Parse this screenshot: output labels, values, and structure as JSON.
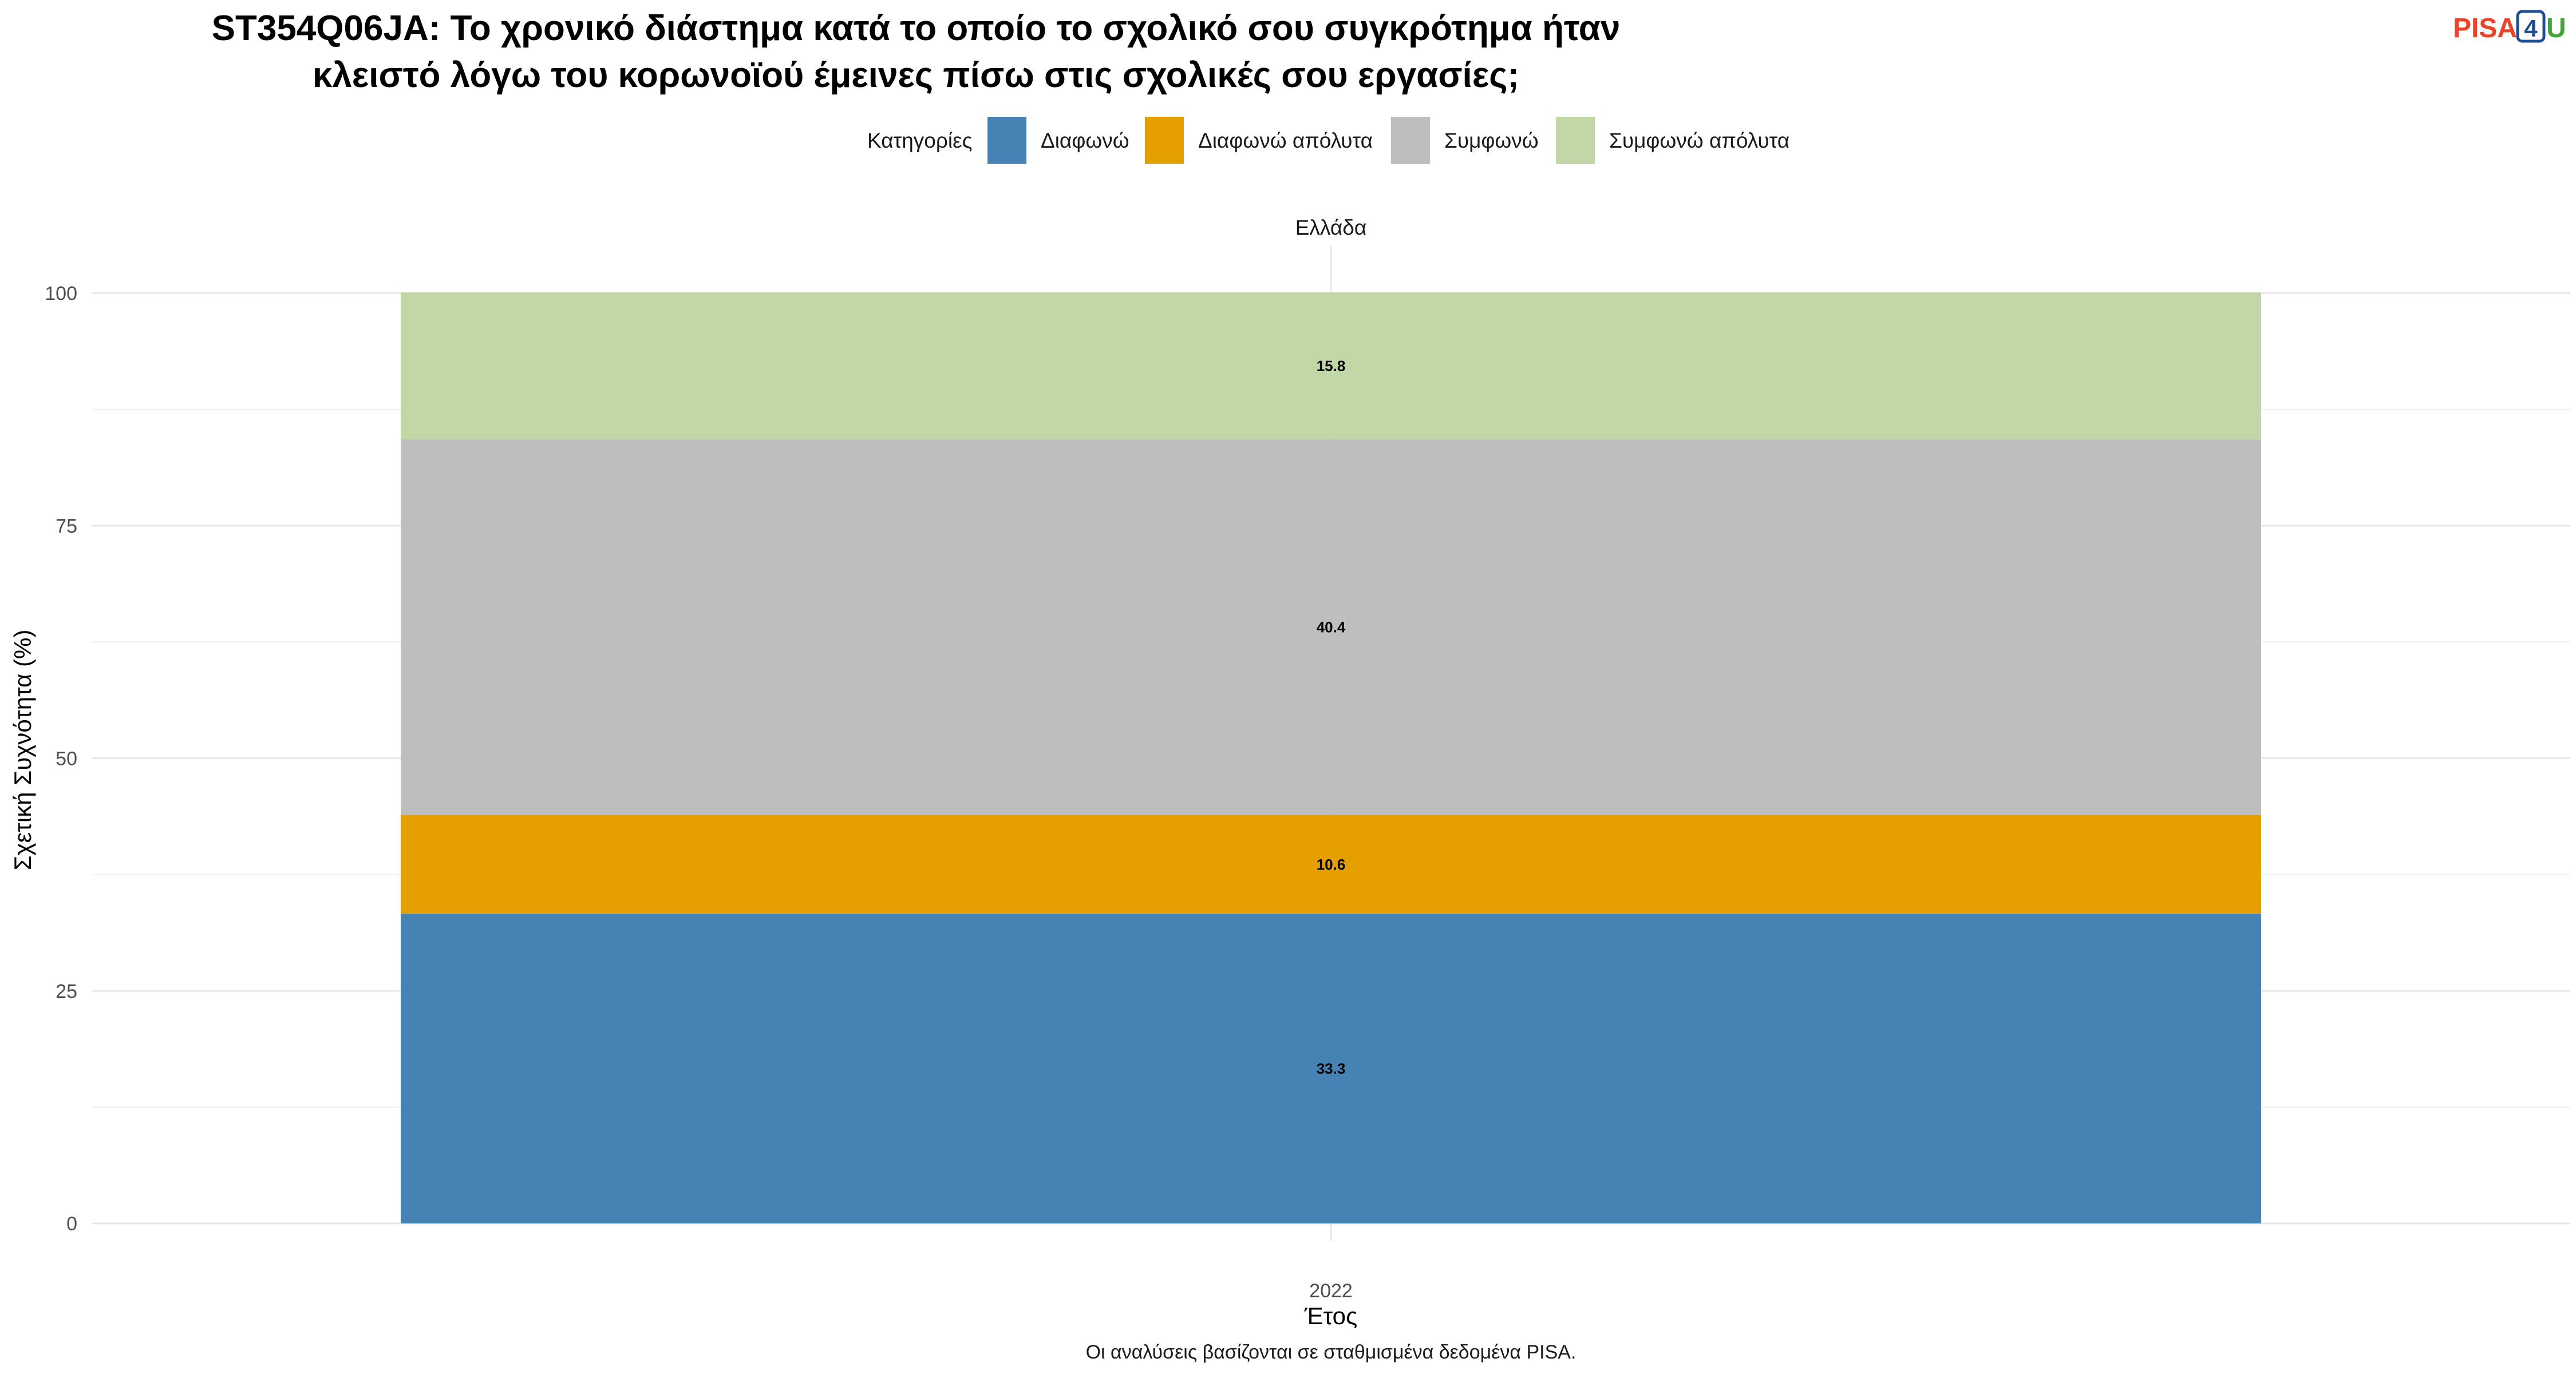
{
  "chart_data": {
    "type": "bar",
    "stacked": true,
    "title_lines": [
      "ST354Q06JA: Το χρονικό διάστημα κατά το οποίο το σχολικό σου συγκρότημα ήταν",
      "κλειστό λόγω του κορωνοϊού έμεινες πίσω στις σχολικές σου εργασίες;"
    ],
    "facet": "Ελλάδα",
    "categories": [
      "2022"
    ],
    "series": [
      {
        "name": "Διαφωνώ",
        "values": [
          33.3
        ],
        "color": "#4682B4",
        "label": "33.3"
      },
      {
        "name": "Διαφωνώ απόλυτα",
        "values": [
          10.6
        ],
        "color": "#E69F00",
        "label": "10.6"
      },
      {
        "name": "Συμφωνώ",
        "values": [
          40.4
        ],
        "color": "#BEBEBE",
        "label": "40.4"
      },
      {
        "name": "Συμφωνώ απόλυτα",
        "values": [
          15.8
        ],
        "color": "#C2D7A6",
        "label": "15.8"
      }
    ],
    "legend_title": "Κατηγορίες",
    "legend_position": "top",
    "xlabel": "Έτος",
    "ylabel": "Σχετική Συχνότητα (%)",
    "ylim": [
      0,
      100
    ],
    "yticks": [
      0,
      25,
      50,
      75,
      100
    ],
    "grid": true,
    "caption": "Οι αναλύσεις βασίζονται σε σταθμισμένα δεδομένα PISA."
  },
  "logo": {
    "part1": "PISA",
    "part2": "4",
    "part3": "U",
    "color1": "#E8452C",
    "color2": "#1F4E96",
    "color3": "#3FA535"
  }
}
